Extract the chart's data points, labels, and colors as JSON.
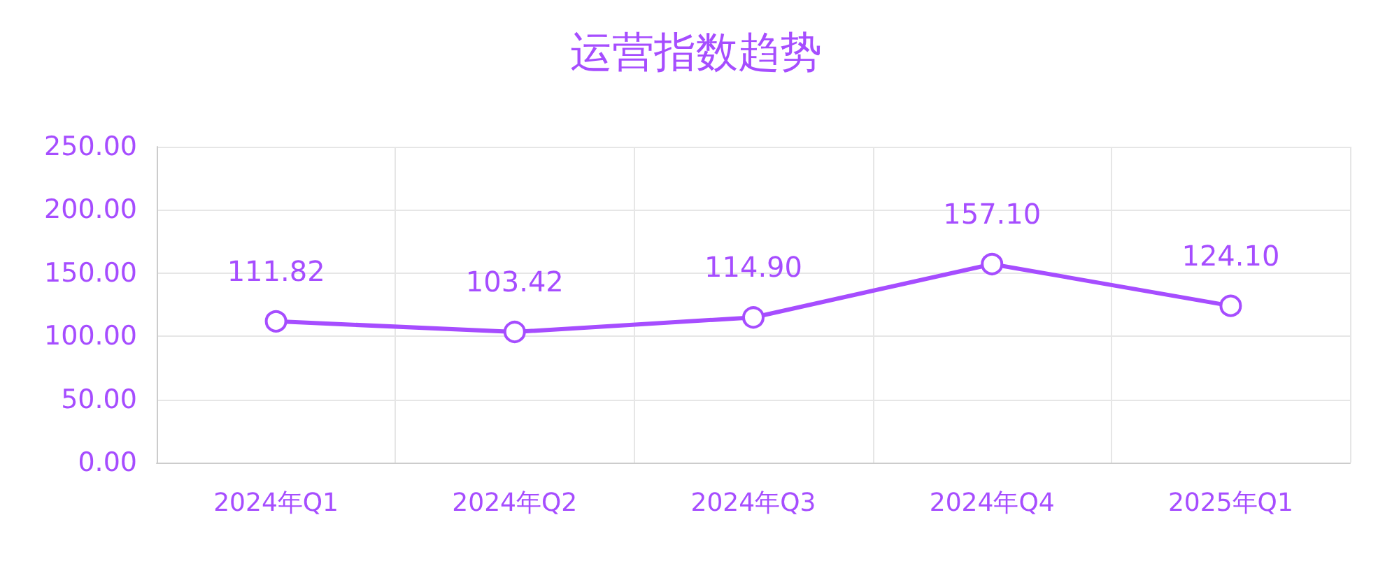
{
  "chart_data": {
    "type": "line",
    "title": "运营指数趋势",
    "categories": [
      "2024年Q1",
      "2024年Q2",
      "2024年Q3",
      "2024年Q4",
      "2025年Q1"
    ],
    "series": [
      {
        "color": "#a64dff",
        "values": [
          111.82,
          103.42,
          114.9,
          157.1,
          124.1
        ],
        "value_labels": [
          "111.82",
          "103.42",
          "114.90",
          "157.10",
          "124.10"
        ]
      }
    ],
    "ylim": [
      0,
      250
    ],
    "yticks": [
      {
        "value": 0,
        "label": "0.00"
      },
      {
        "value": 50,
        "label": "50.00"
      },
      {
        "value": 100,
        "label": "100.00"
      },
      {
        "value": 150,
        "label": "150.00"
      },
      {
        "value": 200,
        "label": "200.00"
      },
      {
        "value": 250,
        "label": "250.00"
      }
    ],
    "grid": true,
    "marker": "circle",
    "line_style": "solid"
  }
}
